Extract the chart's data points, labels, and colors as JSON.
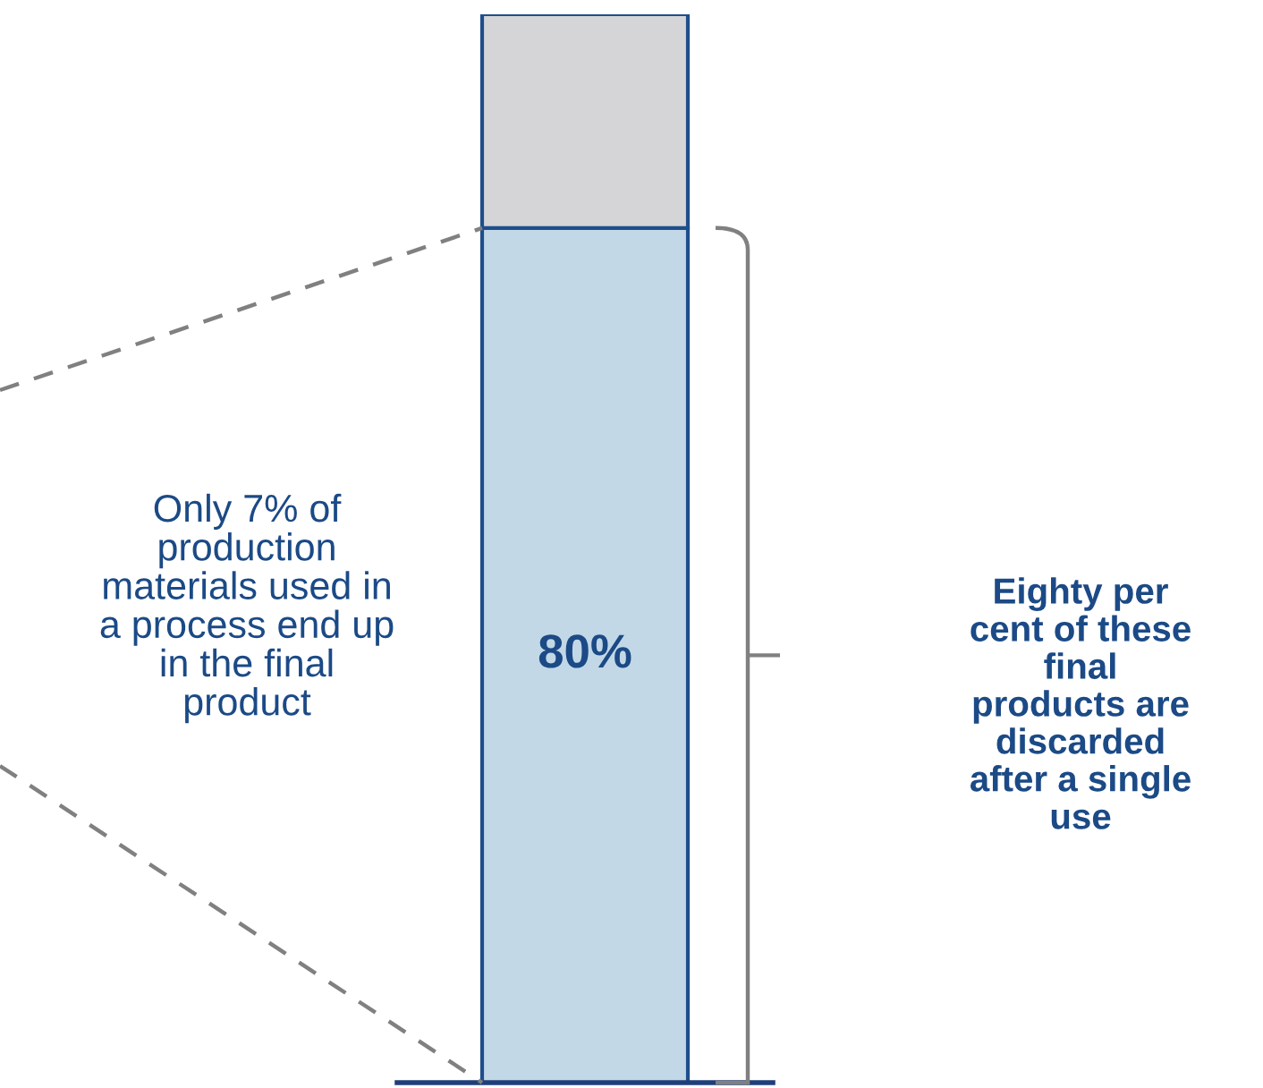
{
  "chart_data": {
    "type": "bar",
    "stacked": true,
    "categories": [
      null
    ],
    "series": [
      {
        "color": "#c2d8e7",
        "values": [
          80
        ],
        "value_labels": [
          "80%"
        ]
      },
      {
        "color": "#d5d5d7",
        "values": [
          20
        ],
        "value_labels": [
          null
        ]
      }
    ],
    "annotations": [
      "Only 7% of\nproduction\nmaterials used in\na process end up\nin the final\nproduct",
      "Eighty per\ncent of these\nfinal\nproducts are\ndiscarded\nafter a single\nuse"
    ]
  }
}
